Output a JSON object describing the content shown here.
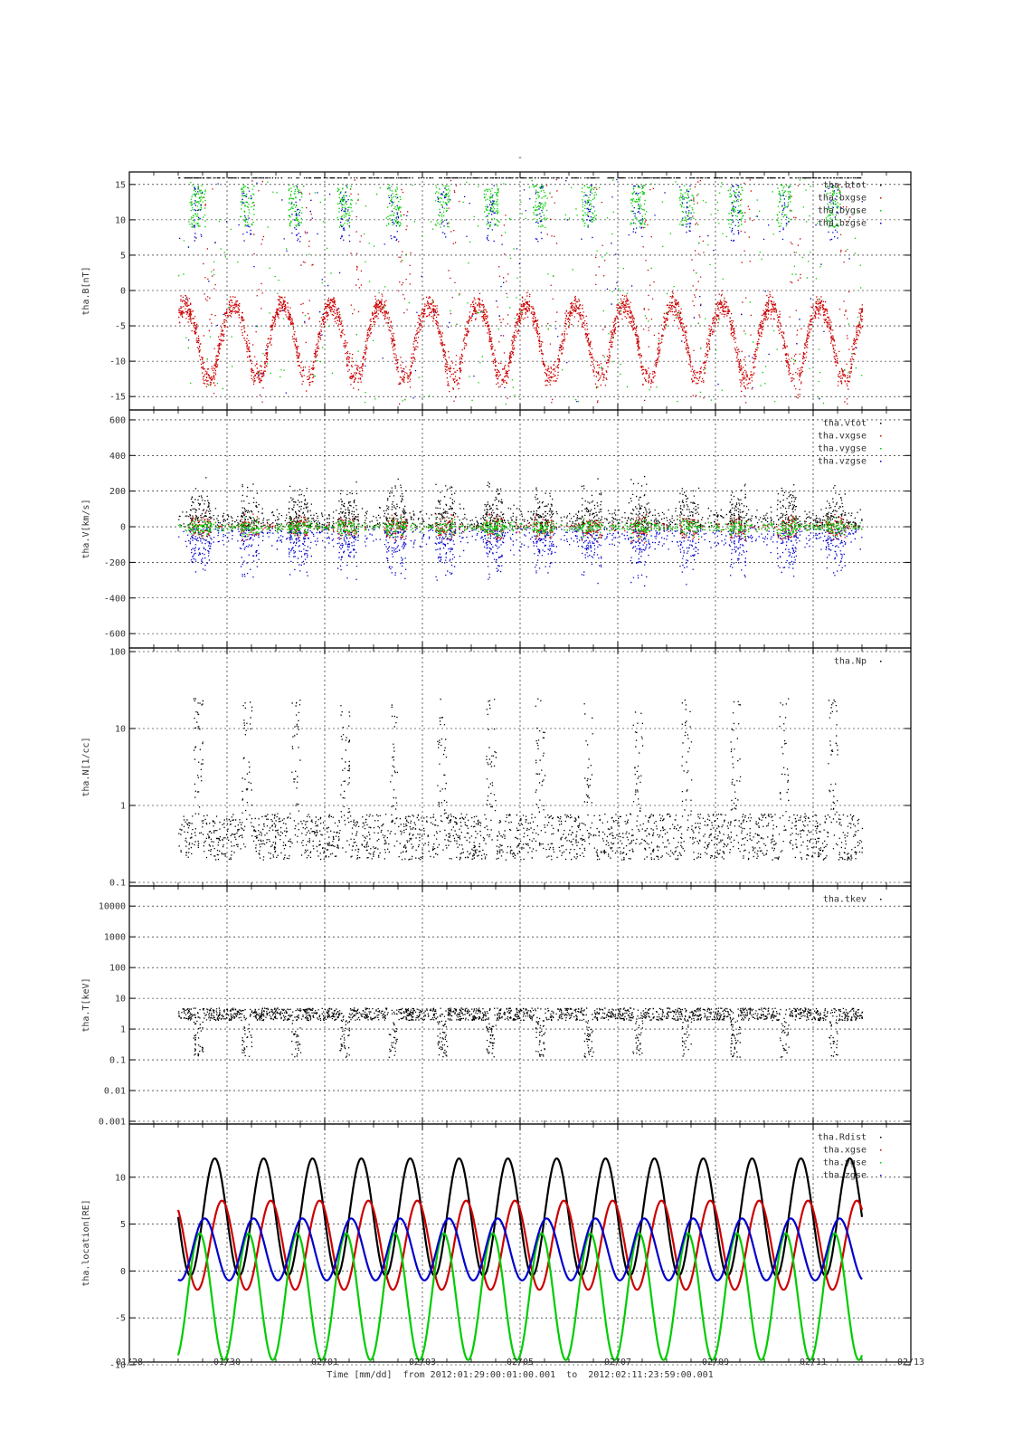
{
  "figure": {
    "top_mark": "-",
    "x_title": "Time [mm/dd]  from 2012:01:29:00:01:00.001  to  2012:02:11:23:59:00.001",
    "x_ticks": [
      "01/28",
      "01/30",
      "02/01",
      "02/03",
      "02/05",
      "02/07",
      "02/09",
      "02/11",
      "02/13"
    ]
  },
  "colors": {
    "black": "#000000",
    "red": "#cc0000",
    "green": "#00cc00",
    "blue": "#0000cc"
  },
  "chart_data": [
    {
      "type": "scatter",
      "ylabel": "tha.B[nT]",
      "ylim": [
        -16,
        16
      ],
      "yscale": "linear",
      "y_ticks": [
        "-15",
        "-10",
        "-5",
        "0",
        "5",
        "10",
        "15"
      ],
      "y_tick_values": [
        -15,
        -10,
        -5,
        0,
        5,
        10,
        15
      ],
      "xlim": [
        "01/28",
        "02/13"
      ],
      "grid": true,
      "legend_position": "top-right",
      "series": [
        {
          "name": "tha.btot",
          "color": "#000000"
        },
        {
          "name": "tha.bxgse",
          "color": "#cc0000"
        },
        {
          "name": "tha.bygse",
          "color": "#00cc00"
        },
        {
          "name": "tha.bzgse",
          "color": "#0000cc"
        }
      ]
    },
    {
      "type": "scatter",
      "ylabel": "tha.V[km/s]",
      "ylim": [
        -640,
        620
      ],
      "yscale": "linear",
      "y_ticks": [
        "-600",
        "-400",
        "-200",
        "0",
        "200",
        "400",
        "600"
      ],
      "y_tick_values": [
        -600,
        -400,
        -200,
        0,
        200,
        400,
        600
      ],
      "xlim": [
        "01/28",
        "02/13"
      ],
      "grid": true,
      "legend_position": "top-right",
      "series": [
        {
          "name": "tha.vtot",
          "color": "#000000"
        },
        {
          "name": "tha.vxgse",
          "color": "#cc0000"
        },
        {
          "name": "tha.vygse",
          "color": "#00cc00"
        },
        {
          "name": "tha.vzgse",
          "color": "#0000cc"
        }
      ]
    },
    {
      "type": "scatter",
      "ylabel": "tha.N[1/cc]",
      "ylim": [
        0.1,
        100
      ],
      "yscale": "log",
      "y_ticks": [
        "0.1",
        "1",
        "10",
        "100"
      ],
      "y_tick_values": [
        0.1,
        1,
        10,
        100
      ],
      "xlim": [
        "01/28",
        "02/13"
      ],
      "grid": true,
      "legend_position": "top-right",
      "series": [
        {
          "name": "tha.Np",
          "color": "#000000"
        }
      ]
    },
    {
      "type": "scatter",
      "ylabel": "tha.T[keV]",
      "ylim": [
        0.001,
        30000
      ],
      "yscale": "log",
      "y_ticks": [
        "0.001",
        "0.01",
        "0.1",
        "1",
        "10",
        "100",
        "1000",
        "10000"
      ],
      "y_tick_values": [
        0.001,
        0.01,
        0.1,
        1,
        10,
        100,
        1000,
        10000
      ],
      "xlim": [
        "01/28",
        "02/13"
      ],
      "grid": true,
      "legend_position": "top-right",
      "series": [
        {
          "name": "tha.tkev",
          "color": "#000000"
        }
      ]
    },
    {
      "type": "line",
      "ylabel": "tha.location[RE]",
      "ylim": [
        -10,
        15
      ],
      "yscale": "linear",
      "y_ticks": [
        "-10",
        "-5",
        "0",
        "5",
        "10"
      ],
      "y_tick_values": [
        -10,
        -5,
        0,
        5,
        10
      ],
      "xlim": [
        "01/28",
        "02/13"
      ],
      "grid": true,
      "legend_position": "top-right",
      "series": [
        {
          "name": "tha.Rdist",
          "color": "#000000",
          "orbit_period_days": 1.0,
          "range": [
            -0.5,
            12
          ],
          "first_apogee": "01/29 18:00"
        },
        {
          "name": "tha.xgse",
          "color": "#cc0000",
          "orbit_period_days": 1.0,
          "range": [
            -2,
            7.5
          ],
          "first_apogee": "01/29 21:30"
        },
        {
          "name": "tha.ygse",
          "color": "#00cc00",
          "orbit_period_days": 1.0,
          "range": [
            -9.5,
            4
          ],
          "first_apogee": "01/29 10:30"
        },
        {
          "name": "tha.zgse",
          "color": "#0000cc",
          "orbit_period_days": 1.0,
          "range": [
            -1,
            5.6
          ],
          "first_apogee": "01/29 13:00"
        }
      ]
    }
  ]
}
